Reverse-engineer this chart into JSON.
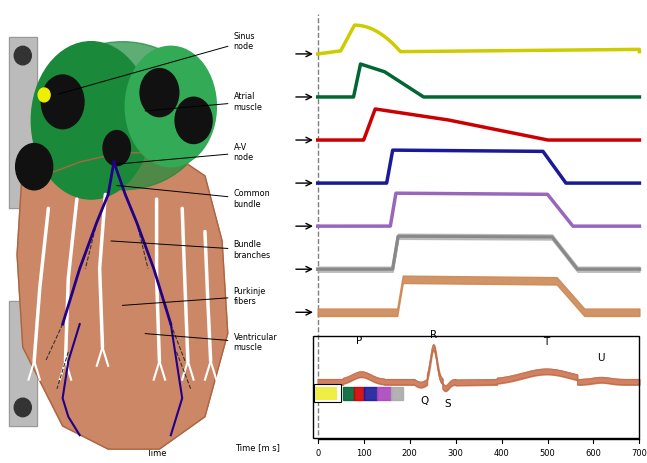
{
  "labels": [
    "Sinus\nnode",
    "Atrial\nmuscle",
    "A-V\nnode",
    "Common\nbundle",
    "Bundle\nbranches",
    "Purkinje\nfibers",
    "Ventricular\nmuscle"
  ],
  "trace_colors": [
    "#cccc00",
    "#006633",
    "#cc0000",
    "#1a1a99",
    "#9966bb",
    "#888888",
    "#cc8855"
  ],
  "ecg_color": "#cc7755",
  "time_axis_label": "Time [m s]",
  "xticks": [
    0,
    100,
    200,
    300,
    400,
    500,
    600,
    700
  ],
  "background": "#ffffff",
  "lw": 2.5
}
